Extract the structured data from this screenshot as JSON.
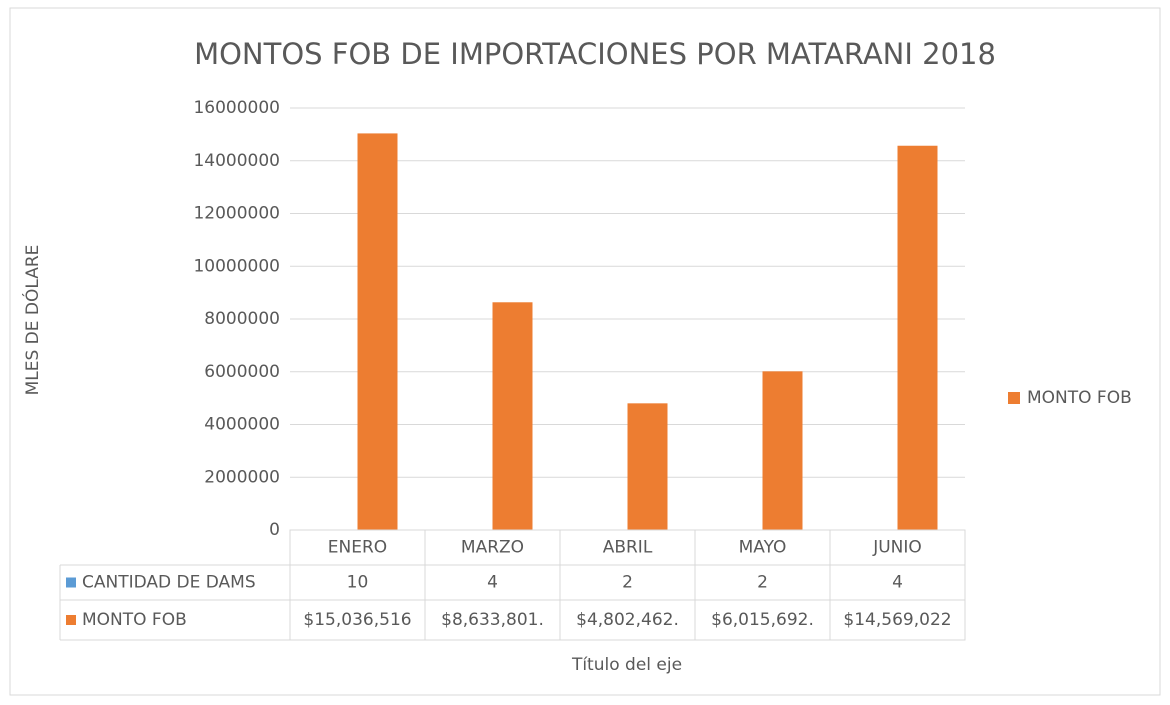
{
  "chart_data": {
    "type": "bar",
    "title": "MONTOS FOB DE IMPORTACIONES POR MATARANI 2018",
    "y_label": "MLES DE DÓLARE",
    "x_label": "Título del eje",
    "categories": [
      "ENERO",
      "MARZO",
      "ABRIL",
      "MAYO",
      "JUNIO"
    ],
    "series": [
      {
        "name": "CANTIDAD DE DAMS",
        "color": "#5b9bd5",
        "values": [
          10,
          4,
          2,
          2,
          4
        ],
        "legend": false
      },
      {
        "name": "MONTO FOB",
        "color": "#ed7d31",
        "values": [
          15036516,
          8633801,
          4802462,
          6015692,
          14569022
        ],
        "value_labels": [
          "$15,036,516",
          "$8,633,801.",
          "$4,802,462.",
          "$6,015,692.",
          "$14,569,022"
        ],
        "legend": true
      }
    ],
    "ylim": [
      0,
      16000000
    ],
    "yticks": [
      0,
      2000000,
      4000000,
      6000000,
      8000000,
      10000000,
      12000000,
      14000000,
      16000000
    ],
    "grid": true,
    "legend_position": "right",
    "data_table": true
  }
}
